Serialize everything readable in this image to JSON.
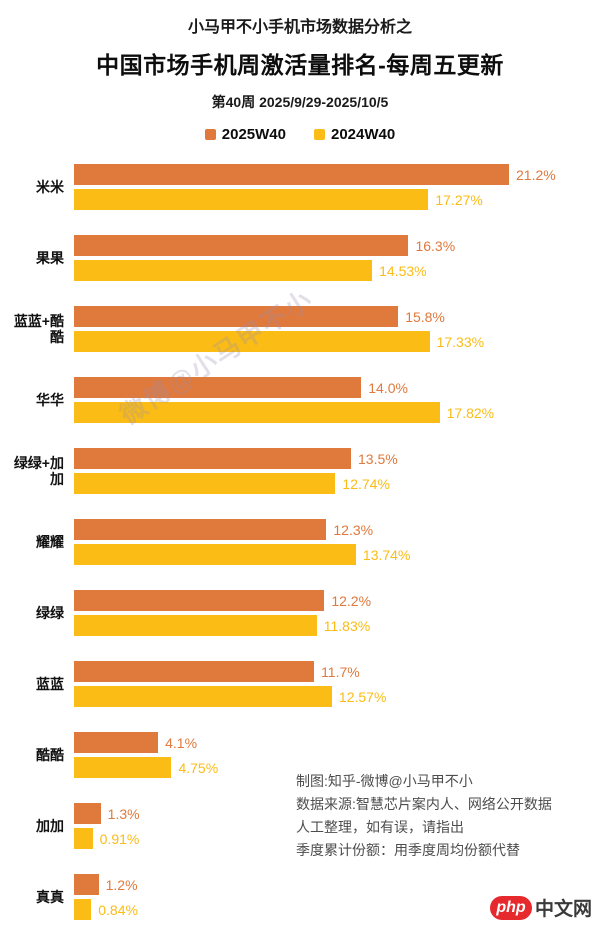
{
  "header": {
    "supertitle": "小马甲不小手机市场数据分析之",
    "title": "中国市场手机周激活量排名-每周五更新",
    "subtitle": "第40周 2025/9/29-2025/10/5"
  },
  "legend": [
    {
      "label": "2025W40",
      "color": "#E0793C"
    },
    {
      "label": "2024W40",
      "color": "#FABC15"
    }
  ],
  "chart_data": {
    "type": "bar",
    "orientation": "horizontal",
    "title": "中国市场手机周激活量排名-每周五更新",
    "categories": [
      "米米",
      "果果",
      "蓝蓝+酷酷",
      "华华",
      "绿绿+加加",
      "耀耀",
      "绿绿",
      "蓝蓝",
      "酷酷",
      "加加",
      "真真"
    ],
    "series": [
      {
        "name": "2025W40",
        "color": "#E0793C",
        "values": [
          21.2,
          16.3,
          15.8,
          14.0,
          13.5,
          12.3,
          12.2,
          11.7,
          4.1,
          1.3,
          1.2
        ],
        "display_values": [
          "21.2%",
          "16.3%",
          "15.8%",
          "14.0%",
          "13.5%",
          "12.3%",
          "12.2%",
          "11.7%",
          "4.1%",
          "1.3%",
          "1.2%"
        ]
      },
      {
        "name": "2024W40",
        "color": "#FABC15",
        "values": [
          17.27,
          14.53,
          17.33,
          17.82,
          12.74,
          13.74,
          11.83,
          12.57,
          4.75,
          0.91,
          0.84
        ],
        "display_values": [
          "17.27%",
          "14.53%",
          "17.33%",
          "17.82%",
          "12.74%",
          "13.74%",
          "11.83%",
          "12.57%",
          "4.75%",
          "0.91%",
          "0.84%"
        ]
      }
    ],
    "value_suffix": "%",
    "xmax": 21.2,
    "data_labels": true,
    "grid": false,
    "value_axis_visible": false,
    "legend_position": "top"
  },
  "watermark": "微博@小马甲不小",
  "notes": {
    "lines": [
      "制图:知乎-微博@小马甲不小",
      "数据来源:智慧芯片案内人、网络公开数据",
      "人工整理，如有误，请指出",
      "季度累计份额：用季度周均份额代替"
    ]
  },
  "site_logo": {
    "badge": "php",
    "text": "中文网",
    "badge_color": "#E6292D"
  }
}
